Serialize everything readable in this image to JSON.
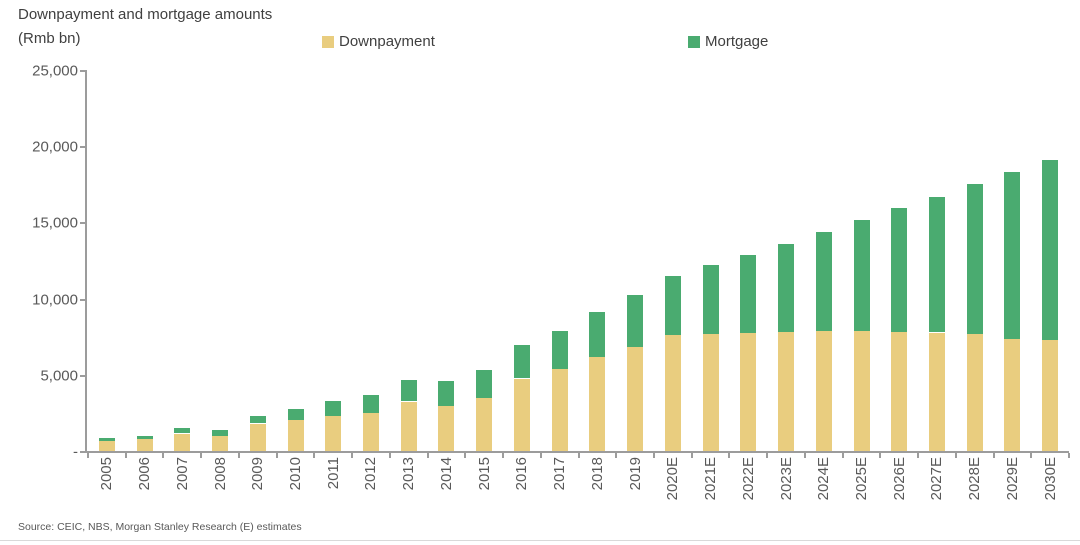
{
  "header": {
    "title": "Downpayment and mortgage amounts",
    "subtitle": "(Rmb bn)"
  },
  "legend": {
    "items": [
      {
        "label": "Downpayment",
        "color": "#e9cd7f"
      },
      {
        "label": "Mortgage",
        "color": "#4aab70"
      }
    ]
  },
  "footer": {
    "source": "Source: CEIC, NBS, Morgan Stanley Research (E) estimates"
  },
  "colors": {
    "downpayment": "#e9cd7f",
    "mortgage": "#4aab70",
    "axis": "#9c9c9c",
    "tick_label": "#595959",
    "title_text": "#404040"
  },
  "chart_data": {
    "type": "bar",
    "stacked": true,
    "title": "Downpayment and mortgage amounts",
    "ylabel": "(Rmb bn)",
    "xlabel": "",
    "grid": false,
    "legend_position": "top",
    "ylim": [
      0,
      25000
    ],
    "ytick_interval": 5000,
    "ytick_labels": [
      "-",
      "5,000",
      "10,000",
      "15,000",
      "20,000",
      "25,000"
    ],
    "categories": [
      "2005",
      "2006",
      "2007",
      "2008",
      "2009",
      "2010",
      "2011",
      "2012",
      "2013",
      "2014",
      "2015",
      "2016",
      "2017",
      "2018",
      "2019",
      "2020E",
      "2021E",
      "2022E",
      "2023E",
      "2024E",
      "2025E",
      "2026E",
      "2027E",
      "2028E",
      "2029E",
      "2030E"
    ],
    "series": [
      {
        "name": "Downpayment",
        "color": "#e9cd7f",
        "values": [
          650,
          800,
          1150,
          1000,
          1800,
          2050,
          2270,
          2530,
          3250,
          2960,
          3470,
          4760,
          5370,
          6170,
          6800,
          7590,
          7660,
          7770,
          7810,
          7850,
          7850,
          7810,
          7770,
          7700,
          7370,
          7260
        ]
      },
      {
        "name": "Mortgage",
        "color": "#4aab70",
        "values": [
          200,
          200,
          350,
          380,
          500,
          700,
          1000,
          1180,
          1400,
          1640,
          1880,
          2200,
          2500,
          2950,
          3470,
          3920,
          4550,
          5100,
          5800,
          6500,
          7330,
          8140,
          8920,
          9820,
          10910,
          11830
        ]
      }
    ]
  }
}
